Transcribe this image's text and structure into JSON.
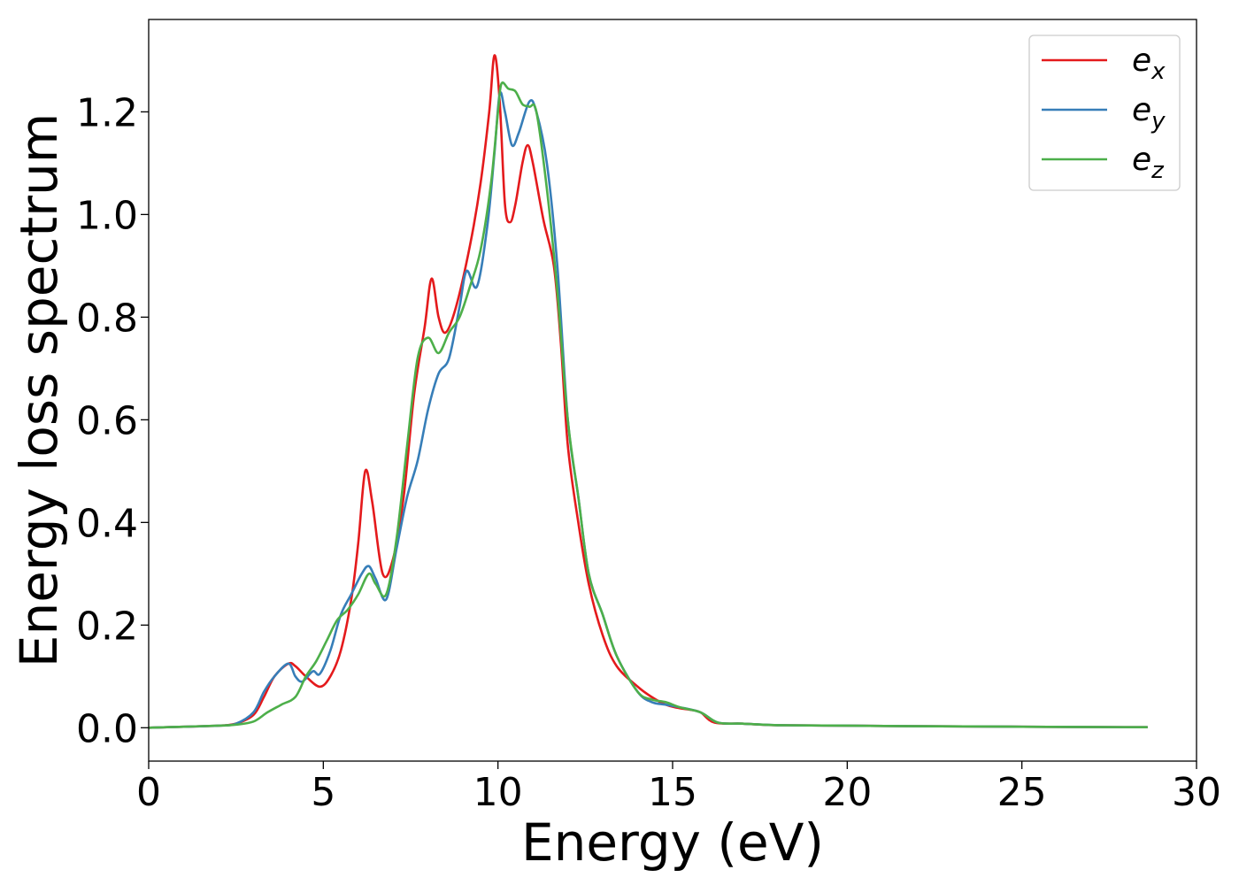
{
  "chart_data": {
    "type": "line",
    "title": "",
    "xlabel": "Energy (eV)",
    "ylabel": "Energy loss spectrum",
    "xlim": [
      0,
      30
    ],
    "ylim": [
      -0.065,
      1.38
    ],
    "xticks": [
      0,
      5,
      10,
      15,
      20,
      25,
      30
    ],
    "xtick_labels": [
      "0",
      "5",
      "10",
      "15",
      "20",
      "25",
      "30"
    ],
    "yticks": [
      0.0,
      0.2,
      0.4,
      0.6,
      0.8,
      1.0,
      1.2
    ],
    "ytick_labels": [
      "0.0",
      "0.2",
      "0.4",
      "0.6",
      "0.8",
      "1.0",
      "1.2"
    ],
    "grid": false,
    "legend_position": "upper-right",
    "series": [
      {
        "name": "e",
        "subscript": "x",
        "color": "#e41a1c",
        "x": [
          0,
          1,
          2,
          2.5,
          3,
          3.3,
          3.6,
          4.0,
          4.2,
          4.5,
          4.9,
          5.2,
          5.5,
          5.8,
          6.0,
          6.2,
          6.4,
          6.7,
          7.0,
          7.3,
          7.6,
          7.9,
          8.1,
          8.3,
          8.5,
          8.8,
          9.2,
          9.5,
          9.75,
          9.9,
          10.05,
          10.2,
          10.35,
          10.5,
          10.7,
          10.85,
          11.0,
          11.3,
          11.6,
          11.8,
          12.0,
          12.3,
          12.6,
          13.0,
          13.4,
          14.0,
          14.4,
          14.8,
          15.2,
          15.5,
          15.8,
          16.2,
          17.0,
          18.0,
          20.0,
          22.0,
          25.0,
          28.6
        ],
        "y": [
          0.0,
          0.002,
          0.004,
          0.008,
          0.025,
          0.06,
          0.1,
          0.125,
          0.12,
          0.1,
          0.08,
          0.1,
          0.15,
          0.25,
          0.36,
          0.5,
          0.44,
          0.3,
          0.33,
          0.45,
          0.65,
          0.78,
          0.875,
          0.8,
          0.77,
          0.82,
          0.94,
          1.06,
          1.2,
          1.31,
          1.22,
          1.02,
          0.985,
          1.02,
          1.1,
          1.135,
          1.1,
          0.99,
          0.9,
          0.75,
          0.55,
          0.4,
          0.28,
          0.18,
          0.12,
          0.08,
          0.06,
          0.045,
          0.038,
          0.035,
          0.03,
          0.01,
          0.008,
          0.005,
          0.004,
          0.003,
          0.002,
          0.001
        ]
      },
      {
        "name": "e",
        "subscript": "y",
        "color": "#377eb8",
        "x": [
          0,
          1,
          2,
          2.5,
          3,
          3.3,
          3.6,
          4.0,
          4.2,
          4.4,
          4.7,
          4.9,
          5.2,
          5.5,
          5.8,
          6.1,
          6.3,
          6.5,
          6.8,
          7.1,
          7.4,
          7.7,
          8.0,
          8.3,
          8.6,
          8.9,
          9.1,
          9.4,
          9.7,
          9.9,
          10.05,
          10.2,
          10.4,
          10.6,
          10.9,
          11.1,
          11.4,
          11.7,
          12.0,
          12.3,
          12.6,
          13.0,
          13.4,
          14.0,
          14.4,
          14.8,
          15.2,
          15.8,
          16.3,
          17.0,
          18.0,
          20.0,
          22.0,
          25.0,
          28.6
        ],
        "y": [
          0.0,
          0.002,
          0.004,
          0.008,
          0.03,
          0.07,
          0.1,
          0.125,
          0.1,
          0.09,
          0.11,
          0.105,
          0.15,
          0.22,
          0.26,
          0.3,
          0.315,
          0.29,
          0.25,
          0.35,
          0.45,
          0.52,
          0.62,
          0.69,
          0.72,
          0.82,
          0.89,
          0.86,
          0.98,
          1.12,
          1.235,
          1.2,
          1.135,
          1.16,
          1.22,
          1.2,
          1.1,
          0.9,
          0.6,
          0.45,
          0.3,
          0.22,
          0.14,
          0.07,
          0.05,
          0.045,
          0.04,
          0.03,
          0.01,
          0.008,
          0.005,
          0.004,
          0.003,
          0.002,
          0.001
        ]
      },
      {
        "name": "e",
        "subscript": "z",
        "color": "#4daf4a",
        "x": [
          0,
          1,
          2,
          2.5,
          3,
          3.4,
          3.8,
          4.2,
          4.5,
          4.8,
          5.1,
          5.4,
          5.7,
          6.0,
          6.3,
          6.5,
          6.8,
          7.1,
          7.4,
          7.7,
          8.0,
          8.3,
          8.6,
          8.9,
          9.2,
          9.5,
          9.8,
          10.0,
          10.1,
          10.3,
          10.5,
          10.7,
          10.9,
          11.1,
          11.4,
          11.7,
          12.0,
          12.3,
          12.6,
          13.0,
          13.4,
          14.0,
          14.4,
          14.8,
          15.2,
          15.8,
          16.3,
          17.0,
          18.0,
          20.0,
          22.0,
          25.0,
          28.6
        ],
        "y": [
          0.0,
          0.002,
          0.004,
          0.006,
          0.012,
          0.03,
          0.045,
          0.06,
          0.1,
          0.13,
          0.17,
          0.21,
          0.23,
          0.26,
          0.3,
          0.28,
          0.26,
          0.37,
          0.55,
          0.72,
          0.76,
          0.73,
          0.77,
          0.8,
          0.86,
          0.93,
          1.06,
          1.2,
          1.255,
          1.245,
          1.24,
          1.215,
          1.21,
          1.2,
          1.05,
          0.85,
          0.6,
          0.45,
          0.3,
          0.22,
          0.14,
          0.07,
          0.055,
          0.05,
          0.04,
          0.03,
          0.01,
          0.008,
          0.005,
          0.004,
          0.003,
          0.002,
          0.001
        ]
      }
    ]
  }
}
